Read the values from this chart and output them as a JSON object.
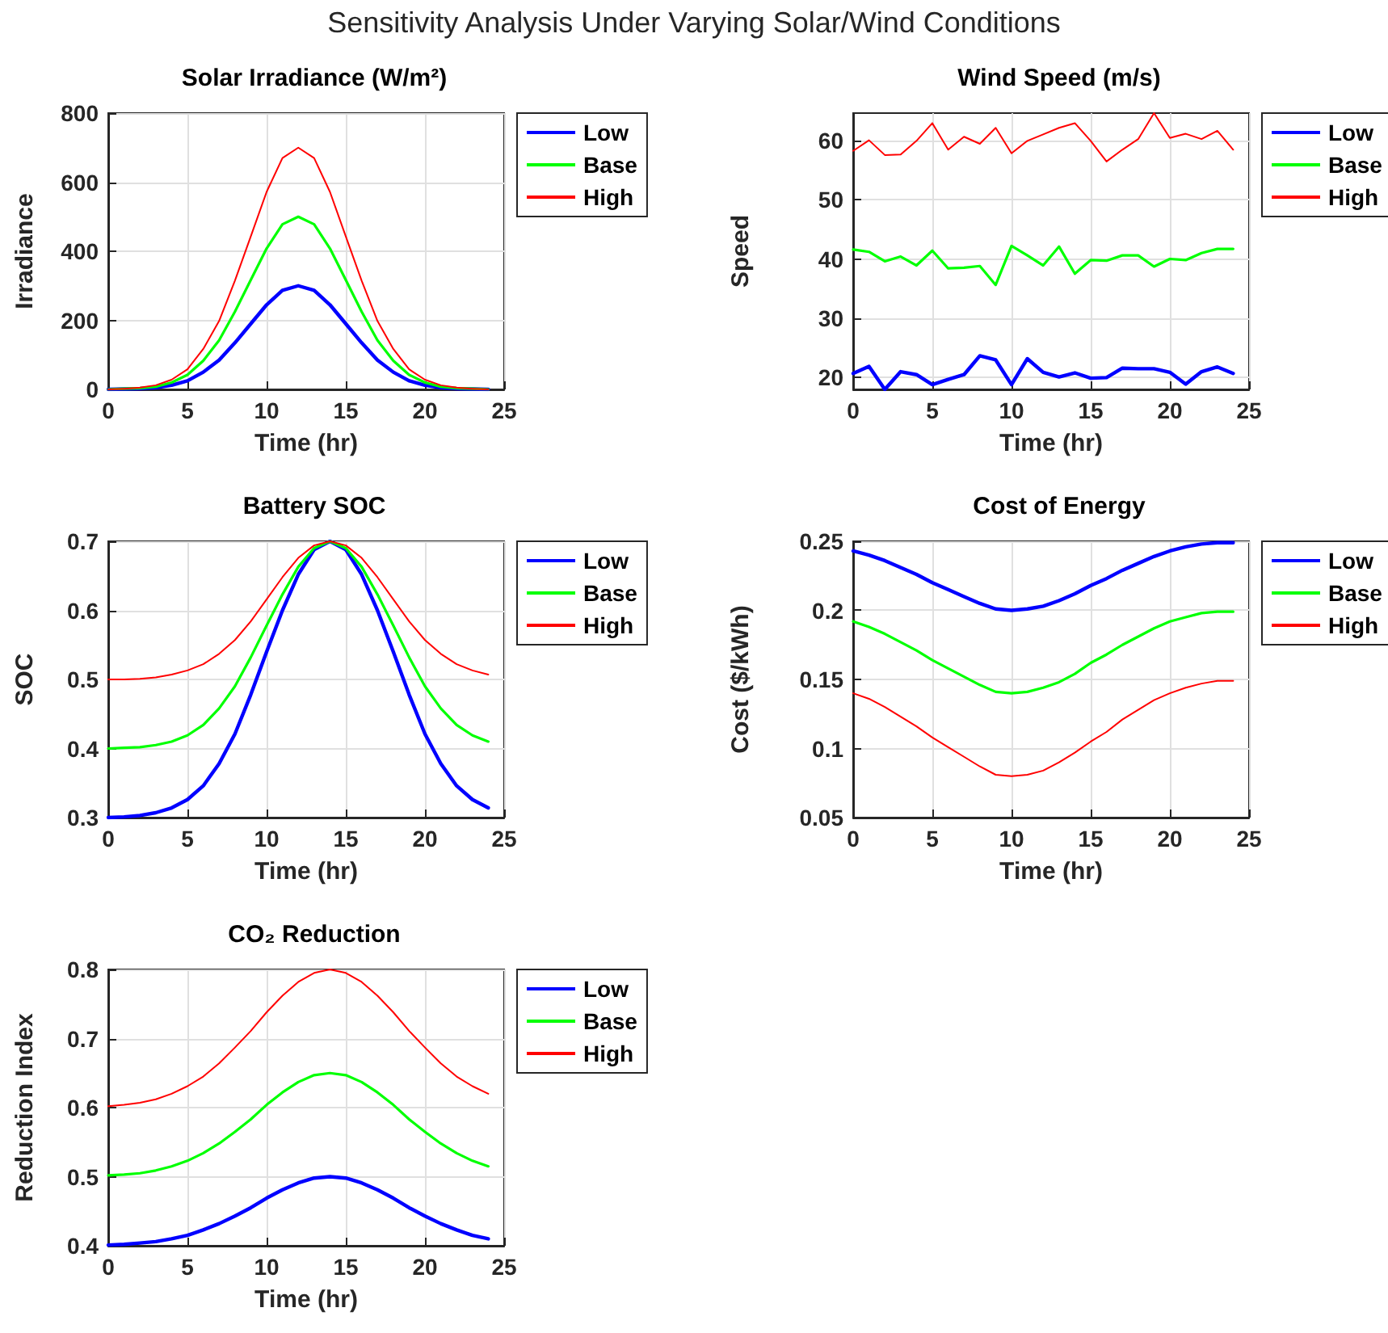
{
  "chart_data": [
    {
      "type": "other",
      "title": "Sensitivity Analysis Under Varying Solar/Wind Conditions"
    },
    {
      "type": "line",
      "title": "Solar Irradiance (W/m²)",
      "xlabel": "Time (hr)",
      "ylabel": "Irradiance",
      "x": [
        0,
        1,
        2,
        3,
        4,
        5,
        6,
        7,
        8,
        9,
        10,
        11,
        12,
        13,
        14,
        15,
        16,
        17,
        18,
        19,
        20,
        21,
        22,
        23,
        24
      ],
      "xlim": [
        0,
        25
      ],
      "xticks": [
        0,
        5,
        10,
        15,
        20,
        25
      ],
      "ylim": [
        0,
        800
      ],
      "yticks": [
        0,
        200,
        400,
        600,
        800
      ],
      "grid": true,
      "legend": "top right",
      "marker": "none",
      "line_style": "solid",
      "series": [
        {
          "name": "Low",
          "color": "#0000ff",
          "values": [
            0,
            1,
            2,
            5,
            12,
            25,
            50,
            85,
            135,
            190,
            245,
            287,
            300,
            287,
            245,
            190,
            135,
            85,
            50,
            25,
            12,
            5,
            2,
            1,
            0
          ]
        },
        {
          "name": "Base",
          "color": "#00ff00",
          "values": [
            0,
            2,
            4,
            8,
            20,
            42,
            83,
            142,
            225,
            317,
            408,
            478,
            500,
            478,
            408,
            317,
            225,
            142,
            83,
            42,
            20,
            8,
            4,
            2,
            0
          ]
        },
        {
          "name": "High",
          "color": "#ff0000",
          "values": [
            0,
            2,
            5,
            12,
            28,
            58,
            117,
            198,
            315,
            443,
            572,
            670,
            700,
            670,
            572,
            443,
            315,
            198,
            117,
            58,
            28,
            12,
            5,
            2,
            0
          ]
        }
      ]
    },
    {
      "type": "line",
      "title": "Wind Speed (m/s)",
      "xlabel": "Time (hr)",
      "ylabel": "Speed",
      "x": [
        0,
        1,
        2,
        3,
        4,
        5,
        6,
        7,
        8,
        9,
        10,
        11,
        12,
        13,
        14,
        15,
        16,
        17,
        18,
        19,
        20,
        21,
        22,
        23,
        24
      ],
      "xlim": [
        0,
        25
      ],
      "xticks": [
        0,
        5,
        10,
        15,
        20,
        25
      ],
      "ylim": [
        17.9,
        64.7
      ],
      "yticks": [
        20,
        30,
        40,
        50,
        60
      ],
      "grid": true,
      "legend": "top right",
      "marker": "none",
      "line_style": "solid",
      "series": [
        {
          "name": "Low",
          "color": "#0000ff",
          "values": [
            20.6,
            21.8,
            17.9,
            20.9,
            20.4,
            18.7,
            19.6,
            20.4,
            23.6,
            22.9,
            18.7,
            23.1,
            20.8,
            20.0,
            20.7,
            19.8,
            19.9,
            21.5,
            21.4,
            21.4,
            20.8,
            18.8,
            20.9,
            21.7,
            20.6
          ]
        },
        {
          "name": "Base",
          "color": "#00ff00",
          "values": [
            41.6,
            41.2,
            39.6,
            40.4,
            38.9,
            41.4,
            38.4,
            38.5,
            38.8,
            35.6,
            42.2,
            40.6,
            38.9,
            42.1,
            37.5,
            39.8,
            39.7,
            40.6,
            40.6,
            38.7,
            40.0,
            39.8,
            41.0,
            41.7,
            41.7
          ]
        },
        {
          "name": "High",
          "color": "#ff0000",
          "values": [
            58.3,
            60.1,
            57.6,
            57.7,
            60.0,
            63.0,
            58.5,
            60.7,
            59.5,
            62.2,
            57.9,
            60.0,
            61.1,
            62.2,
            63.0,
            60.0,
            56.5,
            58.5,
            60.3,
            64.7,
            60.5,
            61.2,
            60.3,
            61.7,
            58.5
          ]
        }
      ]
    },
    {
      "type": "line",
      "title": "Battery SOC",
      "xlabel": "Time (hr)",
      "ylabel": "SOC",
      "x": [
        0,
        1,
        2,
        3,
        4,
        5,
        6,
        7,
        8,
        9,
        10,
        11,
        12,
        13,
        14,
        15,
        16,
        17,
        18,
        19,
        20,
        21,
        22,
        23,
        24
      ],
      "xlim": [
        0,
        25
      ],
      "xticks": [
        0,
        5,
        10,
        15,
        20,
        25
      ],
      "ylim": [
        0.3,
        0.7
      ],
      "yticks": [
        0.3,
        0.4,
        0.5,
        0.6,
        0.7
      ],
      "grid": true,
      "legend": "top right",
      "marker": "none",
      "line_style": "solid",
      "series": [
        {
          "name": "Low",
          "color": "#0000ff",
          "values": [
            0.3,
            0.301,
            0.303,
            0.307,
            0.314,
            0.326,
            0.346,
            0.378,
            0.421,
            0.478,
            0.54,
            0.6,
            0.652,
            0.688,
            0.7,
            0.688,
            0.652,
            0.6,
            0.54,
            0.478,
            0.421,
            0.378,
            0.346,
            0.326,
            0.314
          ]
        },
        {
          "name": "Base",
          "color": "#00ff00",
          "values": [
            0.4,
            0.401,
            0.402,
            0.405,
            0.41,
            0.419,
            0.434,
            0.458,
            0.49,
            0.532,
            0.578,
            0.623,
            0.663,
            0.69,
            0.7,
            0.69,
            0.663,
            0.623,
            0.578,
            0.532,
            0.49,
            0.458,
            0.434,
            0.419,
            0.41
          ]
        },
        {
          "name": "High",
          "color": "#ff0000",
          "values": [
            0.5,
            0.5,
            0.501,
            0.503,
            0.507,
            0.513,
            0.522,
            0.537,
            0.557,
            0.584,
            0.616,
            0.648,
            0.676,
            0.694,
            0.7,
            0.694,
            0.676,
            0.648,
            0.616,
            0.584,
            0.557,
            0.537,
            0.522,
            0.513,
            0.507
          ]
        }
      ]
    },
    {
      "type": "line",
      "title": "Cost of Energy",
      "xlabel": "Time (hr)",
      "ylabel": "Cost ($/kWh)",
      "x": [
        0,
        1,
        2,
        3,
        4,
        5,
        6,
        7,
        8,
        9,
        10,
        11,
        12,
        13,
        14,
        15,
        16,
        17,
        18,
        19,
        20,
        21,
        22,
        23,
        24
      ],
      "xlim": [
        0,
        25
      ],
      "xticks": [
        0,
        5,
        10,
        15,
        20,
        25
      ],
      "ylim": [
        0.05,
        0.25
      ],
      "yticks": [
        0.05,
        0.1,
        0.15,
        0.2,
        0.25
      ],
      "grid": true,
      "legend": "top right",
      "marker": "none",
      "line_style": "solid",
      "series": [
        {
          "name": "Low",
          "color": "#0000ff",
          "values": [
            0.243,
            0.24,
            0.236,
            0.231,
            0.226,
            0.22,
            0.215,
            0.21,
            0.205,
            0.201,
            0.2,
            0.201,
            0.203,
            0.207,
            0.212,
            0.218,
            0.223,
            0.229,
            0.234,
            0.239,
            0.243,
            0.246,
            0.248,
            0.249,
            0.249
          ]
        },
        {
          "name": "Base",
          "color": "#00ff00",
          "values": [
            0.192,
            0.188,
            0.183,
            0.177,
            0.171,
            0.164,
            0.158,
            0.152,
            0.146,
            0.141,
            0.14,
            0.141,
            0.144,
            0.148,
            0.154,
            0.162,
            0.168,
            0.175,
            0.181,
            0.187,
            0.192,
            0.195,
            0.198,
            0.199,
            0.199
          ]
        },
        {
          "name": "High",
          "color": "#ff0000",
          "values": [
            0.14,
            0.136,
            0.13,
            0.123,
            0.116,
            0.108,
            0.101,
            0.094,
            0.087,
            0.081,
            0.08,
            0.081,
            0.084,
            0.09,
            0.097,
            0.105,
            0.112,
            0.121,
            0.128,
            0.135,
            0.14,
            0.144,
            0.147,
            0.149,
            0.149
          ]
        }
      ]
    },
    {
      "type": "line",
      "title": "CO₂ Reduction",
      "xlabel": "Time (hr)",
      "ylabel": "Reduction Index",
      "x": [
        0,
        1,
        2,
        3,
        4,
        5,
        6,
        7,
        8,
        9,
        10,
        11,
        12,
        13,
        14,
        15,
        16,
        17,
        18,
        19,
        20,
        21,
        22,
        23,
        24
      ],
      "xlim": [
        0,
        25
      ],
      "xticks": [
        0,
        5,
        10,
        15,
        20,
        25
      ],
      "ylim": [
        0.4,
        0.8
      ],
      "yticks": [
        0.4,
        0.5,
        0.6,
        0.7,
        0.8
      ],
      "grid": true,
      "legend": "top right",
      "marker": "none",
      "line_style": "solid",
      "series": [
        {
          "name": "Low",
          "color": "#0000ff",
          "values": [
            0.401,
            0.402,
            0.404,
            0.406,
            0.41,
            0.415,
            0.423,
            0.432,
            0.443,
            0.455,
            0.469,
            0.481,
            0.491,
            0.498,
            0.5,
            0.498,
            0.491,
            0.481,
            0.469,
            0.455,
            0.443,
            0.432,
            0.423,
            0.415,
            0.41
          ]
        },
        {
          "name": "Base",
          "color": "#00ff00",
          "values": [
            0.502,
            0.503,
            0.505,
            0.509,
            0.515,
            0.523,
            0.534,
            0.548,
            0.565,
            0.583,
            0.604,
            0.622,
            0.637,
            0.647,
            0.65,
            0.647,
            0.637,
            0.622,
            0.604,
            0.583,
            0.565,
            0.548,
            0.534,
            0.523,
            0.515
          ]
        },
        {
          "name": "High",
          "color": "#ff0000",
          "values": [
            0.602,
            0.604,
            0.607,
            0.612,
            0.62,
            0.631,
            0.645,
            0.664,
            0.687,
            0.711,
            0.738,
            0.762,
            0.782,
            0.795,
            0.8,
            0.795,
            0.782,
            0.762,
            0.738,
            0.711,
            0.687,
            0.664,
            0.645,
            0.631,
            0.62
          ]
        }
      ]
    }
  ]
}
